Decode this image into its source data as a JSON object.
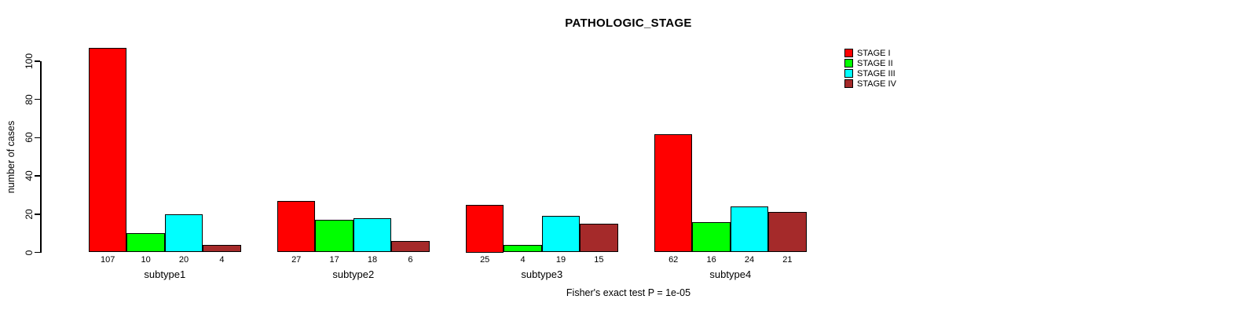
{
  "title": "PATHOLOGIC_STAGE",
  "caption": "Fisher's exact test P = 1e-05",
  "y_axis": {
    "label": "number of cases",
    "ticks": [
      0,
      20,
      40,
      60,
      80,
      100
    ]
  },
  "legend": {
    "items": [
      {
        "label": "STAGE I",
        "color": "#FF0000"
      },
      {
        "label": "STAGE II",
        "color": "#00FF00"
      },
      {
        "label": "STAGE III",
        "color": "#00FFFF"
      },
      {
        "label": "STAGE IV",
        "color": "#A52A2A"
      }
    ]
  },
  "chart_data": {
    "type": "bar",
    "grouped": true,
    "title": "PATHOLOGIC_STAGE",
    "xlabel": "",
    "ylabel": "number of cases",
    "ylim": [
      0,
      100
    ],
    "grid": false,
    "legend_position": "top-right",
    "bar_value_labels_shown": true,
    "categories": [
      "subtype1",
      "subtype2",
      "subtype3",
      "subtype4"
    ],
    "series": [
      {
        "name": "STAGE I",
        "color": "#FF0000",
        "values": [
          107,
          27,
          25,
          62
        ]
      },
      {
        "name": "STAGE II",
        "color": "#00FF00",
        "values": [
          10,
          17,
          4,
          16
        ]
      },
      {
        "name": "STAGE III",
        "color": "#00FFFF",
        "values": [
          20,
          18,
          19,
          24
        ]
      },
      {
        "name": "STAGE IV",
        "color": "#A52A2A",
        "values": [
          4,
          6,
          15,
          21
        ]
      }
    ],
    "annotation": "Fisher's exact test P = 1e-05"
  }
}
